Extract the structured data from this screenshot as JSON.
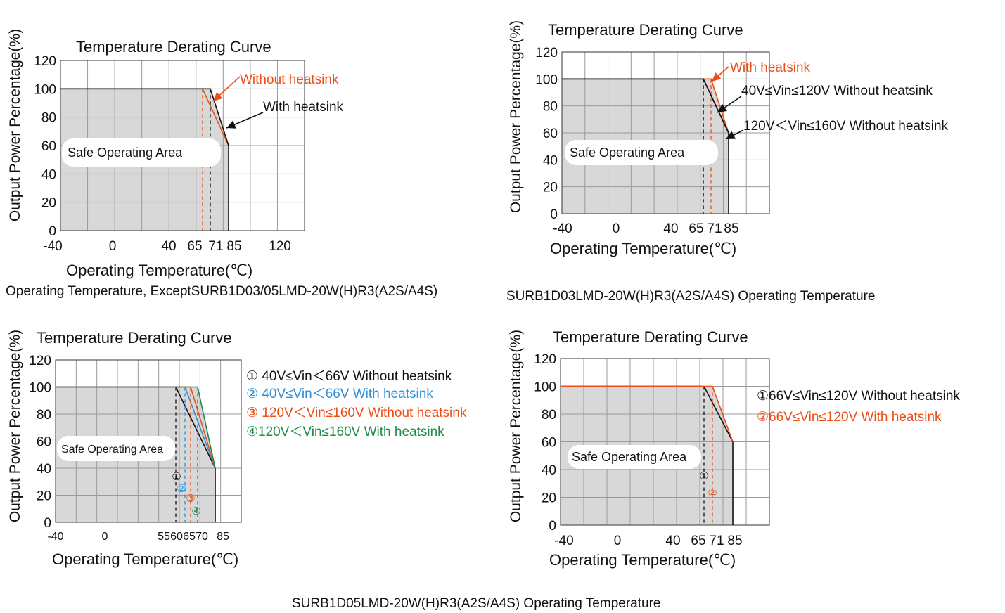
{
  "captions": {
    "c1": "Operating Temperature, ExceptSURB1D03/05LMD-20W(H)R3(A2S/A4S)",
    "c2": "SURB1D03LMD-20W(H)R3(A2S/A4S) Operating Temperature",
    "c3": "SURB1D05LMD-20W(H)R3(A2S/A4S) Operating Temperature"
  },
  "colors": {
    "grid": "#9a9a9a",
    "area": "#d8d8d8",
    "orange": "#ee4d16",
    "black": "#111111",
    "blue": "#2f8fd8",
    "green": "#1e8a4a"
  },
  "chart_data": [
    {
      "type": "line",
      "title": "Temperature Derating Curve",
      "xlabel": "Operating Temperature(℃)",
      "ylabel": "Output Power Percentage(%)",
      "xticks": [
        "-40",
        "0",
        "40",
        "65",
        "71",
        "85",
        "120"
      ],
      "yticks": [
        "0",
        "20",
        "40",
        "60",
        "80",
        "100",
        "120"
      ],
      "ylim": [
        0,
        120
      ],
      "region_label": "Safe Operating Area",
      "series": [
        {
          "name": "Without heatsink",
          "color": "orange",
          "x": [
            -40,
            65,
            85
          ],
          "y": [
            100,
            100,
            60
          ]
        },
        {
          "name": "With heatsink",
          "color": "black",
          "x": [
            -40,
            71,
            85
          ],
          "y": [
            100,
            100,
            60
          ]
        }
      ],
      "markers": [],
      "grid": true
    },
    {
      "type": "line",
      "title": "Temperature Derating Curve",
      "xlabel": "Operating Temperature(℃)",
      "ylabel": "Output Power Percentage(%)",
      "xticks": [
        "-40",
        "0",
        "40",
        "65",
        "71",
        "85"
      ],
      "yticks": [
        "0",
        "20",
        "40",
        "60",
        "80",
        "100",
        "120"
      ],
      "ylim": [
        0,
        120
      ],
      "region_label": "Safe Operating Area",
      "series": [
        {
          "name": "With heatsink",
          "color": "orange",
          "x": [
            -40,
            71,
            85
          ],
          "y": [
            100,
            100,
            60
          ]
        },
        {
          "name": "40V≤Vin≤120V Without heatsink",
          "color": "black",
          "x": [
            -40,
            65,
            85
          ],
          "y": [
            100,
            100,
            60
          ]
        },
        {
          "name": "120V＜Vin≤160V Without heatsink",
          "color": "black",
          "x": [
            -40,
            65,
            85
          ],
          "y": [
            100,
            100,
            60
          ]
        }
      ],
      "markers": [],
      "grid": true
    },
    {
      "type": "line",
      "title": "Temperature Derating Curve",
      "xlabel": "Operating Temperature(℃)",
      "ylabel": "Output Power Percentage(%)",
      "xticks": [
        "-40",
        "0",
        "55",
        "60",
        "65",
        "70",
        "85"
      ],
      "yticks": [
        "0",
        "20",
        "40",
        "60",
        "80",
        "100",
        "120"
      ],
      "ylim": [
        0,
        120
      ],
      "region_label": "Safe Operating Area",
      "series": [
        {
          "name": "① 40V≤Vin＜66V Without heatsink",
          "color": "black",
          "x": [
            -40,
            55,
            85
          ],
          "y": [
            100,
            100,
            40
          ]
        },
        {
          "name": "② 40V≤Vin＜66V With heatsink",
          "color": "blue",
          "x": [
            -40,
            60,
            85
          ],
          "y": [
            100,
            100,
            40
          ]
        },
        {
          "name": "③ 120V＜Vin≤160V Without heatsink",
          "color": "orange",
          "x": [
            -40,
            65,
            85
          ],
          "y": [
            100,
            100,
            40
          ]
        },
        {
          "name": "④120V＜Vin≤160V With heatsink",
          "color": "green",
          "x": [
            -40,
            70,
            85
          ],
          "y": [
            100,
            100,
            40
          ]
        }
      ],
      "markers": [
        "①",
        "②",
        "③",
        "④"
      ],
      "grid": true
    },
    {
      "type": "line",
      "title": "Temperature Derating Curve",
      "xlabel": "Operating Temperature(℃)",
      "ylabel": "Output Power Percentage(%)",
      "xticks": [
        "-40",
        "0",
        "40",
        "65",
        "71",
        "85"
      ],
      "yticks": [
        "0",
        "20",
        "40",
        "60",
        "80",
        "100",
        "120"
      ],
      "ylim": [
        0,
        120
      ],
      "region_label": "Safe Operating Area",
      "series": [
        {
          "name": "①66V≤Vin≤120V Without heatsink",
          "color": "black",
          "x": [
            -40,
            65,
            85
          ],
          "y": [
            100,
            100,
            60
          ]
        },
        {
          "name": "②66V≤Vin≤120V With heatsink",
          "color": "orange",
          "x": [
            -40,
            71,
            85
          ],
          "y": [
            100,
            100,
            60
          ]
        }
      ],
      "markers": [
        "①",
        "②"
      ],
      "grid": true
    }
  ]
}
